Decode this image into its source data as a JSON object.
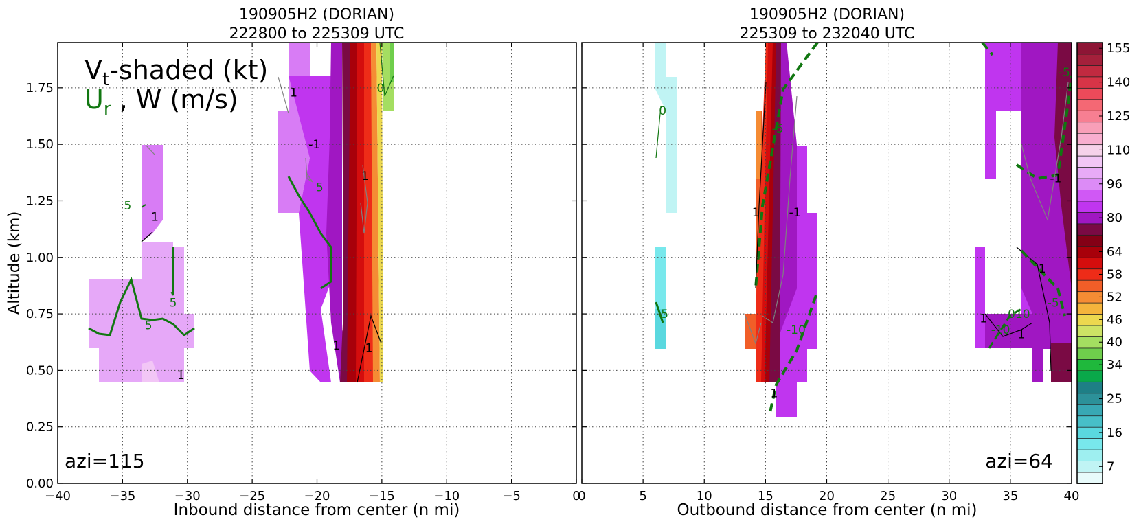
{
  "chart_data": [
    {
      "type": "contour",
      "title": [
        "190905H2 (DORIAN)",
        "222800 to 225309 UTC"
      ],
      "xlabel": "Inbound distance from center (n mi)",
      "ylabel": "Altitude (km)",
      "xlim": [
        -40,
        0
      ],
      "ylim": [
        0,
        1.95
      ],
      "xticks": [
        -40,
        -35,
        -30,
        -25,
        -20,
        -15,
        -10,
        -5,
        0
      ],
      "xtick_labels": [
        "−40",
        "−35",
        "−30",
        "−25",
        "−20",
        "−15",
        "−10",
        "−5",
        "0"
      ],
      "yticks": [
        0,
        0.25,
        0.5,
        0.75,
        1.0,
        1.25,
        1.5,
        1.75
      ],
      "ytick_labels": [
        "0.00",
        "0.25",
        "0.50",
        "0.75",
        "1.00",
        "1.25",
        "1.50",
        "1.75"
      ],
      "grid": true,
      "legend": {
        "vt_label": "V",
        "vt_sub": "t",
        "vt_suffix": "-shaded (kt)",
        "ur_label": "U",
        "ur_sub": "r",
        "ur_suffix": " , W (m/s)"
      },
      "annotation": "azi=115",
      "contour_labels": [
        {
          "text": "5",
          "x": -34.6,
          "y": 1.23,
          "color": "#117711"
        },
        {
          "text": "1",
          "x": -32.5,
          "y": 1.18,
          "color": "#000000"
        },
        {
          "text": "5",
          "x": -31.1,
          "y": 0.8,
          "color": "#117711"
        },
        {
          "text": "5",
          "x": -33.0,
          "y": 0.7,
          "color": "#117711"
        },
        {
          "text": "1",
          "x": -30.5,
          "y": 0.48,
          "color": "#000000"
        },
        {
          "text": "-1",
          "x": -20.2,
          "y": 1.5,
          "color": "#000000"
        },
        {
          "text": "5",
          "x": -19.8,
          "y": 1.31,
          "color": "#117711"
        },
        {
          "text": "1",
          "x": -21.8,
          "y": 1.73,
          "color": "#000000"
        },
        {
          "text": "1",
          "x": -16.3,
          "y": 1.36,
          "color": "#000000"
        },
        {
          "text": "0",
          "x": -15.1,
          "y": 1.75,
          "color": "#117711"
        },
        {
          "text": "1",
          "x": -18.5,
          "y": 0.61,
          "color": "#000000"
        },
        {
          "text": "1",
          "x": -16.0,
          "y": 0.6,
          "color": "#000000"
        }
      ]
    },
    {
      "type": "contour",
      "title": [
        "190905H2 (DORIAN)",
        "225309 to 232040 UTC"
      ],
      "xlabel": "Outbound distance from center (n mi)",
      "xlim": [
        0,
        40
      ],
      "ylim": [
        0,
        1.95
      ],
      "xticks": [
        0,
        5,
        10,
        15,
        20,
        25,
        30,
        35,
        40
      ],
      "xtick_labels": [
        "0",
        "5",
        "10",
        "15",
        "20",
        "25",
        "30",
        "35",
        "40"
      ],
      "grid": true,
      "annotation": "azi=64",
      "contour_labels": [
        {
          "text": "0",
          "x": 6.6,
          "y": 1.65,
          "color": "#117711"
        },
        {
          "text": "-5",
          "x": 6.6,
          "y": 0.75,
          "color": "#117711"
        },
        {
          "text": "-5",
          "x": 16.0,
          "y": 1.57,
          "color": "#117711"
        },
        {
          "text": "1",
          "x": 14.2,
          "y": 1.2,
          "color": "#000000"
        },
        {
          "text": "-1",
          "x": 17.4,
          "y": 1.2,
          "color": "#000000"
        },
        {
          "text": "-10",
          "x": 17.5,
          "y": 0.68,
          "color": "#117711"
        },
        {
          "text": "1",
          "x": 15.7,
          "y": 0.4,
          "color": "#000000"
        },
        {
          "text": "-5",
          "x": 39.4,
          "y": 1.82,
          "color": "#117711"
        },
        {
          "text": "-1",
          "x": 38.7,
          "y": 1.35,
          "color": "#000000"
        },
        {
          "text": "1",
          "x": 37.6,
          "y": 0.95,
          "color": "#000000"
        },
        {
          "text": "-5",
          "x": 38.5,
          "y": 0.8,
          "color": "#117711"
        },
        {
          "text": "-10",
          "x": 34.2,
          "y": 0.68,
          "color": "#117711"
        },
        {
          "text": "010",
          "x": 35.7,
          "y": 0.75,
          "color": "#117711"
        },
        {
          "text": "1",
          "x": 32.8,
          "y": 0.73,
          "color": "#000000"
        },
        {
          "text": "1",
          "x": 35.9,
          "y": 0.66,
          "color": "#000000"
        }
      ]
    }
  ],
  "colorbar": {
    "levels": [
      7,
      10,
      13,
      16,
      19,
      22,
      25,
      28,
      31,
      34,
      37,
      40,
      43,
      46,
      49,
      52,
      55,
      58,
      61,
      64,
      72,
      80,
      88,
      96,
      103,
      110,
      118,
      125,
      133,
      140,
      148,
      155
    ],
    "tick_labels": [
      "7",
      "16",
      "25",
      "34",
      "40",
      "46",
      "52",
      "58",
      "64",
      "80",
      "96",
      "110",
      "125",
      "140",
      "155"
    ],
    "colors": [
      "#e8fbfb",
      "#c0f4f4",
      "#9eeff0",
      "#78e8ec",
      "#5ad8df",
      "#47bfc8",
      "#38a8b4",
      "#2c9199",
      "#1e7f86",
      "#0aa84a",
      "#1fb83c",
      "#6fce4c",
      "#a4de61",
      "#cde365",
      "#ecd84f",
      "#f4b43c",
      "#f58c34",
      "#f15e28",
      "#ee2c18",
      "#d40d0d",
      "#a8000a",
      "#840016",
      "#7a0a44",
      "#a017c2",
      "#c035ef",
      "#d058f5",
      "#dc8bf6",
      "#e8aaf7",
      "#f2c6f6",
      "#f6d2ea",
      "#f8aecf",
      "#f89fb8",
      "#f77f92",
      "#f46874",
      "#ec4a5a",
      "#d73447",
      "#c12a40",
      "#a4203b",
      "#8d1535"
    ]
  }
}
